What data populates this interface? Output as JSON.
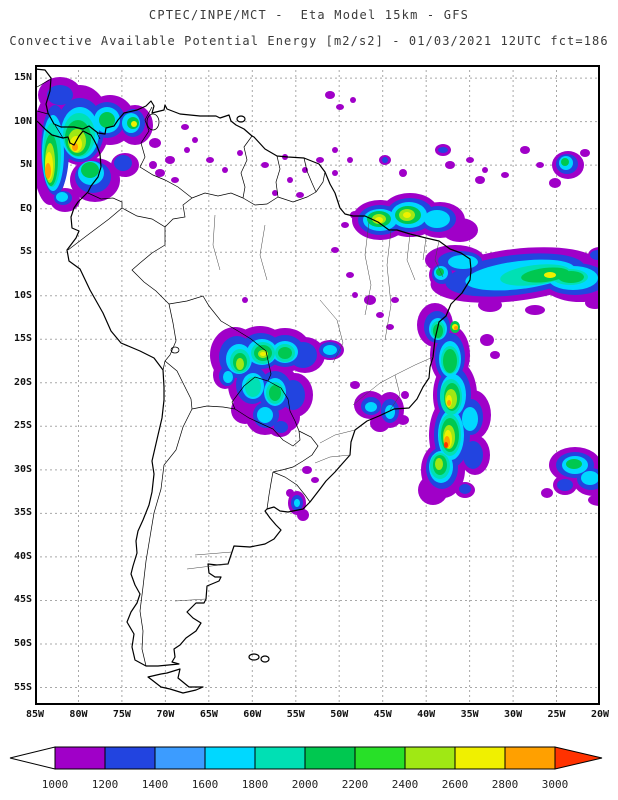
{
  "header": {
    "line1": "CPTEC/INPE/MCT -  Eta Model 15km - GFS",
    "line2": "Convective Available Potential Energy [m2/s2] - 01/03/2021 12UTC fct=186"
  },
  "map": {
    "lat_labels": [
      "15N",
      "10N",
      "5N",
      "EQ",
      "5S",
      "10S",
      "15S",
      "20S",
      "25S",
      "30S",
      "35S",
      "40S",
      "45S",
      "50S",
      "55S"
    ],
    "lon_labels": [
      "85W",
      "80W",
      "75W",
      "70W",
      "65W",
      "60W",
      "55W",
      "50W",
      "45W",
      "40W",
      "35W",
      "30W",
      "25W",
      "20W"
    ]
  },
  "colorbar": {
    "tick_labels": [
      "1000",
      "1200",
      "1400",
      "1600",
      "1800",
      "2000",
      "2200",
      "2400",
      "2600",
      "2800",
      "3000"
    ],
    "segment_colors": [
      "#a000c8",
      "#2244e0",
      "#3c9cff",
      "#00d8ff",
      "#00e0b4",
      "#00c850",
      "#28e028",
      "#a0e814",
      "#f0f000",
      "#ffa000"
    ],
    "below_min_color": "#ffffff",
    "above_max_color": "#ff3200",
    "outline_color": "#000000"
  }
}
